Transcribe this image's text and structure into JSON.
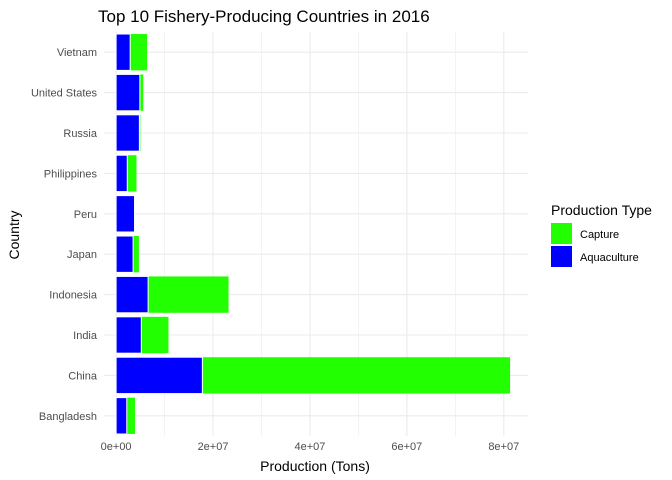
{
  "chart_data": {
    "type": "bar",
    "orientation": "horizontal",
    "stacked": true,
    "title": "Top 10 Fishery-Producing Countries in 2016",
    "xlabel": "Production (Tons)",
    "ylabel": "Country",
    "categories": [
      "Bangladesh",
      "China",
      "India",
      "Indonesia",
      "Japan",
      "Peru",
      "Philippines",
      "Russia",
      "United States",
      "Vietnam"
    ],
    "series": [
      {
        "name": "Aquaculture",
        "color": "#0000ff",
        "values": [
          2200000,
          17800000,
          5200000,
          6600000,
          3500000,
          3800000,
          2300000,
          4800000,
          4900000,
          2900000
        ]
      },
      {
        "name": "Capture",
        "color": "#22ff00",
        "values": [
          1700000,
          63500000,
          5600000,
          16600000,
          1200000,
          0,
          1900000,
          200000,
          700000,
          3500000
        ]
      }
    ],
    "xlim": [
      -2500000,
      85000000
    ],
    "xticks": [
      0,
      20000000,
      40000000,
      60000000,
      80000000
    ],
    "xtick_labels": [
      "0e+00",
      "2e+07",
      "4e+07",
      "6e+07",
      "8e+07"
    ],
    "grid": true,
    "legend": {
      "title": "Production Type",
      "position": "right",
      "entries": [
        {
          "label": "Capture",
          "color": "#22ff00"
        },
        {
          "label": "Aquaculture",
          "color": "#0000ff"
        }
      ]
    }
  }
}
